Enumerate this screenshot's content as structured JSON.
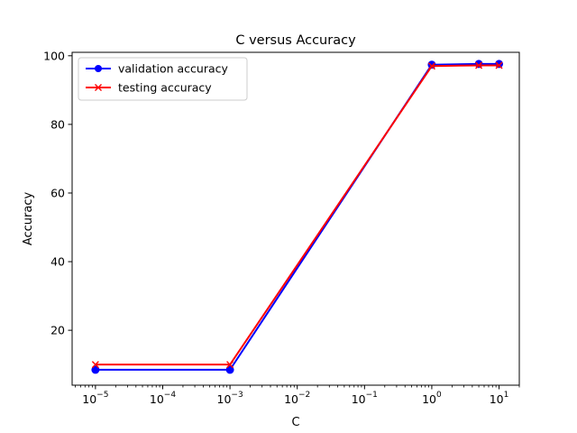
{
  "chart_data": {
    "type": "line",
    "title": "C versus Accuracy",
    "xlabel": "C",
    "ylabel": "Accuracy",
    "xscale": "log",
    "xlim": [
      4.5e-06,
      20
    ],
    "ylim": [
      4,
      101
    ],
    "x": [
      1e-05,
      0.001,
      1,
      5,
      10
    ],
    "x_ticks": [
      {
        "value": 1e-05,
        "base": "10",
        "exp": "−5"
      },
      {
        "value": 0.0001,
        "base": "10",
        "exp": "−4"
      },
      {
        "value": 0.001,
        "base": "10",
        "exp": "−3"
      },
      {
        "value": 0.01,
        "base": "10",
        "exp": "−2"
      },
      {
        "value": 0.1,
        "base": "10",
        "exp": "−1"
      },
      {
        "value": 1,
        "base": "10",
        "exp": "0"
      },
      {
        "value": 10,
        "base": "10",
        "exp": "1"
      }
    ],
    "y_ticks": [
      20,
      40,
      60,
      80,
      100
    ],
    "grid": false,
    "legend_position": "upper-left",
    "series": [
      {
        "name": "validation accuracy",
        "color": "#0000ff",
        "marker": "circle",
        "values": [
          8.5,
          8.5,
          97.4,
          97.6,
          97.6
        ]
      },
      {
        "name": "testing accuracy",
        "color": "#ff0000",
        "marker": "x",
        "values": [
          10.0,
          10.0,
          97.0,
          97.2,
          97.2
        ]
      }
    ]
  }
}
